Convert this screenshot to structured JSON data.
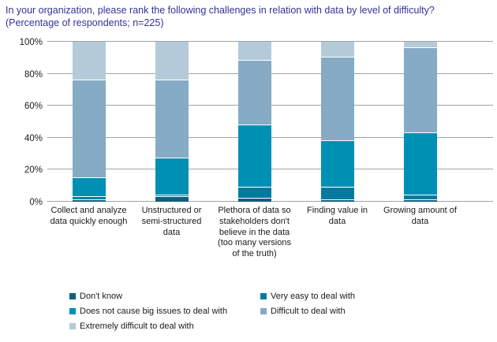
{
  "title": {
    "line1": "In your organization, please rank the following challenges in relation with data by level of difficulty?",
    "line2": "(Percentage of respondents; n=225)"
  },
  "colors": {
    "title_text": "#333399",
    "gridline": "#a3a3a3",
    "body_text": "#1a1a1a",
    "segment_separator": "#ffffff"
  },
  "chart_data": {
    "type": "bar",
    "subtype": "100-percent-stacked-vertical",
    "title": "In your organization, please rank the following challenges in relation with data by level of difficulty? (Percentage of respondents; n=225)",
    "xlabel": "",
    "ylabel": "",
    "ylim": [
      0,
      100
    ],
    "grid": true,
    "legend_position": "bottom",
    "yticks": [
      0,
      20,
      40,
      60,
      80,
      100
    ],
    "ytick_labels": [
      "0%",
      "20%",
      "40%",
      "60%",
      "80%",
      "100%"
    ],
    "categories": [
      "Collect and analyze data quickly enough",
      "Unstructured or semi-structured data",
      "Plethora of data so stakeholders don't believe in the data (too many versions of the truth)",
      "Finding value in data",
      "Growing amount of data"
    ],
    "series": [
      {
        "name": "Don't know",
        "color": "#0e5f7d",
        "values": [
          1,
          3,
          2,
          1,
          1
        ]
      },
      {
        "name": "Very easy to deal with",
        "color": "#007b9d",
        "values": [
          2,
          1,
          7,
          8,
          3
        ]
      },
      {
        "name": "Does not cause big issues to deal with",
        "color": "#0090b4",
        "values": [
          12,
          23,
          39,
          29,
          39
        ]
      },
      {
        "name": "Difficult to deal with",
        "color": "#85abc5",
        "values": [
          61,
          49,
          40,
          52,
          53
        ]
      },
      {
        "name": "Extremely difficult to deal with",
        "color": "#b4cad9",
        "values": [
          24,
          24,
          12,
          10,
          4
        ]
      }
    ]
  }
}
